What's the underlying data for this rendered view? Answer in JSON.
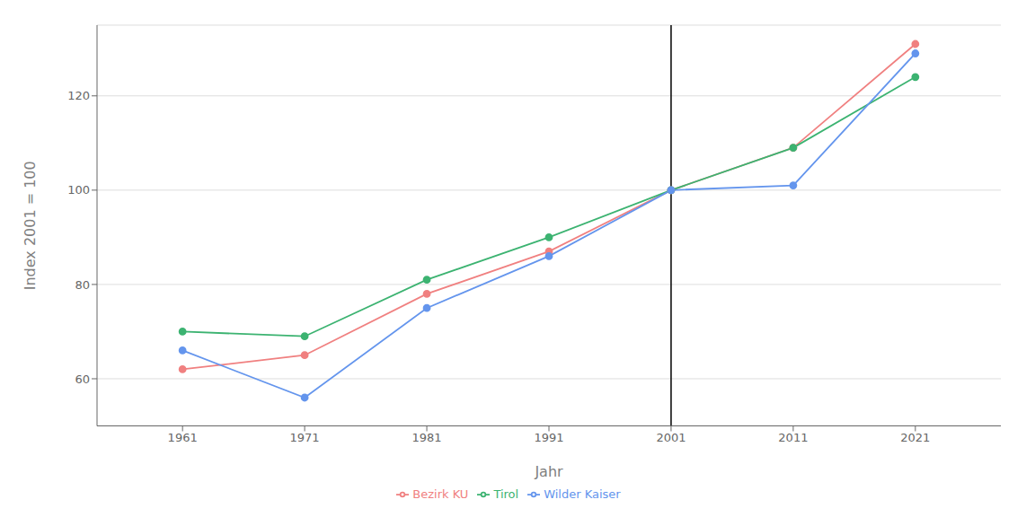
{
  "chart_data": {
    "type": "line",
    "x": [
      1961,
      1971,
      1981,
      1991,
      2001,
      2011,
      2021
    ],
    "xlabel": "Jahr",
    "ylabel": "Index 2001 = 100",
    "series": [
      {
        "name": "Bezirk KU",
        "color": "#F08080",
        "values": [
          62,
          65,
          78,
          87,
          100,
          109,
          131
        ],
        "marker": "circle"
      },
      {
        "name": "Tirol",
        "color": "#3CB371",
        "values": [
          70,
          69,
          81,
          90,
          100,
          109,
          124
        ],
        "marker": "circle"
      },
      {
        "name": "Wilder Kaiser",
        "color": "#6495ED",
        "values": [
          66,
          56,
          75,
          86,
          100,
          101,
          129
        ],
        "marker": "circle"
      }
    ],
    "xlim": [
      1954,
      2028
    ],
    "xticks": [
      1961,
      1971,
      1981,
      1991,
      2001,
      2011,
      2021
    ],
    "ylim": [
      50,
      135
    ],
    "yticks": [
      60,
      80,
      100,
      120
    ],
    "vlines": [
      2001
    ],
    "grid": "y",
    "legend": "bottom"
  }
}
